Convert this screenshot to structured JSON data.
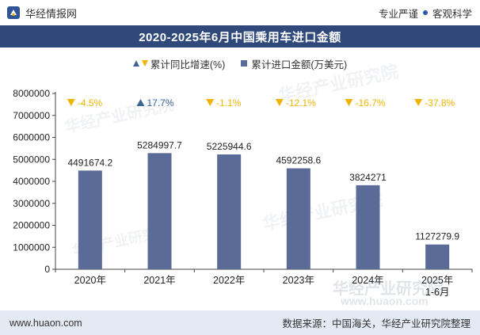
{
  "header": {
    "brand": "华经情报网",
    "tagline_left": "专业严谨",
    "tagline_right": "客观科学",
    "logo_icon": "huajing-logo-icon"
  },
  "title": "2020-2025年6月中国乘用车进口金额",
  "legend": {
    "growth_label": "累计同比增速(%)",
    "amount_label": "累计进口金额(万美元)"
  },
  "colors": {
    "bar": "#5b6b98",
    "up": "#3d6593",
    "down": "#f0b400",
    "title_bg": "#2f4a7a",
    "footer_bg": "#e3eaf4"
  },
  "chart_data": {
    "type": "bar",
    "title": "2020-2025年6月中国乘用车进口金额",
    "categories": [
      "2020年",
      "2021年",
      "2022年",
      "2023年",
      "2024年",
      "2025年 1-6月"
    ],
    "series": [
      {
        "name": "累计进口金额(万美元)",
        "values": [
          4491674.2,
          5284997.7,
          5225944.6,
          4592258.6,
          3824271,
          1127279.9
        ],
        "labels": [
          "4491674.2",
          "5284997.7",
          "5225944.6",
          "4592258.6",
          "3824271",
          "1127279.9"
        ]
      },
      {
        "name": "累计同比增速(%)",
        "values": [
          -4.5,
          17.7,
          -1.1,
          -12.1,
          -16.7,
          -37.8
        ],
        "labels": [
          "-4.5%",
          "17.7%",
          "-1.1%",
          "-12.1%",
          "-16.7%",
          "-37.8%"
        ]
      }
    ],
    "ylim": [
      0,
      8000000
    ],
    "yticks": [
      0,
      1000000,
      2000000,
      3000000,
      4000000,
      5000000,
      6000000,
      7000000,
      8000000
    ],
    "ytick_labels": [
      "0",
      "1000000",
      "2000000",
      "3000000",
      "4000000",
      "5000000",
      "6000000",
      "7000000",
      "8000000"
    ],
    "grid": false
  },
  "watermarks": [
    "华经产业研究院",
    "www.huaon.com"
  ],
  "footer": {
    "website": "www.huaon.com",
    "source": "数据来源：中国海关，华经产业研究院整理"
  }
}
